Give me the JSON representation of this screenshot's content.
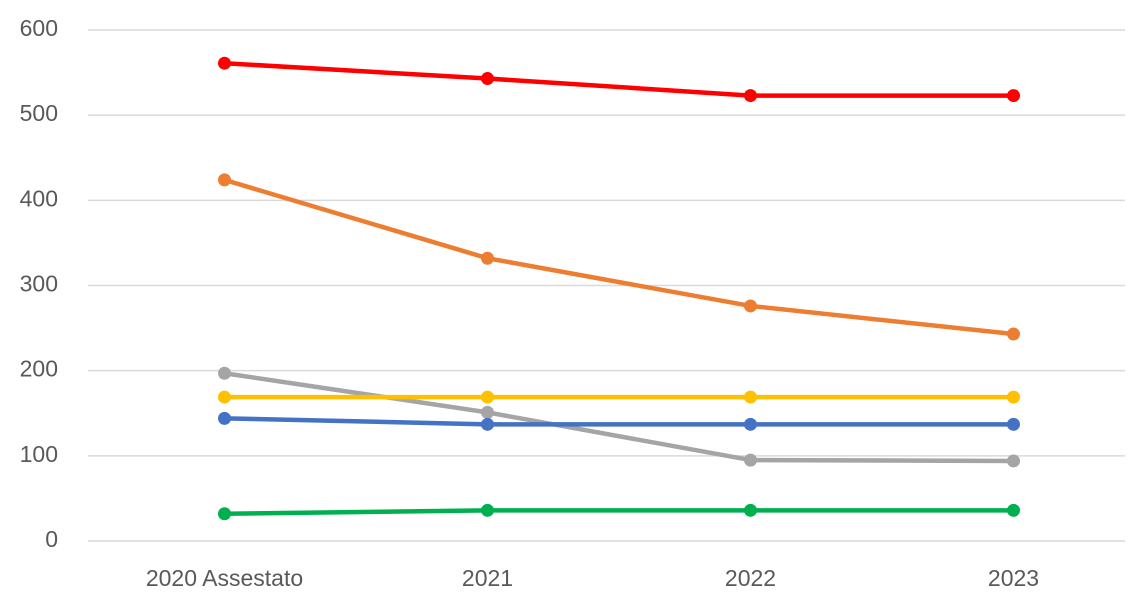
{
  "chart_data": {
    "type": "line",
    "categories": [
      "2020 Assestato",
      "2021",
      "2022",
      "2023"
    ],
    "series": [
      {
        "color": "#ff0000",
        "values": [
          561,
          543,
          523,
          523
        ]
      },
      {
        "color": "#ed7d31",
        "values": [
          424,
          332,
          276,
          243
        ]
      },
      {
        "color": "#a5a5a5",
        "values": [
          197,
          151,
          95,
          94
        ]
      },
      {
        "color": "#ffc000",
        "values": [
          169,
          169,
          169,
          169
        ]
      },
      {
        "color": "#4472c4",
        "values": [
          144,
          137,
          137,
          137
        ]
      },
      {
        "color": "#00b050",
        "values": [
          32,
          36,
          36,
          36
        ]
      }
    ],
    "ylim": [
      0,
      600
    ],
    "yticks": [
      0,
      100,
      200,
      300,
      400,
      500,
      600
    ],
    "grid": true
  }
}
